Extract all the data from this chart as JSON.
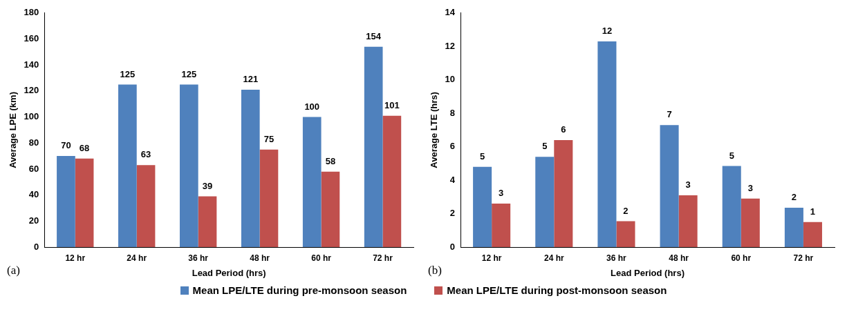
{
  "chart_data": [
    {
      "type": "bar",
      "xlabel": "Lead Period (hrs)",
      "ylabel": "Average LPE (km)",
      "categories": [
        "12 hr",
        "24 hr",
        "36 hr",
        "48 hr",
        "60 hr",
        "72 hr"
      ],
      "series": [
        {
          "name": "Mean LPE/LTE during pre-monsoon season",
          "color": "#4f81bd",
          "values": [
            70,
            125,
            125,
            121,
            100,
            154
          ]
        },
        {
          "name": "Mean LPE/LTE during post-monsoon season",
          "color": "#c0504d",
          "values": [
            68,
            63,
            39,
            75,
            58,
            101
          ]
        }
      ],
      "ylim": [
        0,
        180
      ],
      "yticks": [
        0,
        20,
        40,
        60,
        80,
        100,
        120,
        140,
        160,
        180
      ],
      "grid": false,
      "data_labels": true,
      "legend": "bottom",
      "annotations": [
        "(a)"
      ]
    },
    {
      "type": "bar",
      "xlabel": "Lead Period (hrs)",
      "ylabel": "Average LTE (hrs)",
      "categories": [
        "12 hr",
        "24 hr",
        "36 hr",
        "48 hr",
        "60 hr",
        "72 hr"
      ],
      "series": [
        {
          "color": "#4f81bd",
          "values": [
            4.8,
            5.4,
            12.3,
            7.3,
            4.85,
            2.35
          ],
          "value_labels": [
            "5",
            "5",
            "12",
            "7",
            "5",
            "2"
          ]
        },
        {
          "color": "#c0504d",
          "values": [
            2.6,
            6.4,
            1.55,
            3.1,
            2.9,
            1.5
          ],
          "value_labels": [
            "3",
            "6",
            "2",
            "3",
            "3",
            "1"
          ]
        }
      ],
      "ylim": [
        0,
        14
      ],
      "yticks": [
        0,
        2,
        4,
        6,
        8,
        10,
        12,
        14
      ],
      "grid": false,
      "annotations": [
        "(b)"
      ]
    }
  ]
}
